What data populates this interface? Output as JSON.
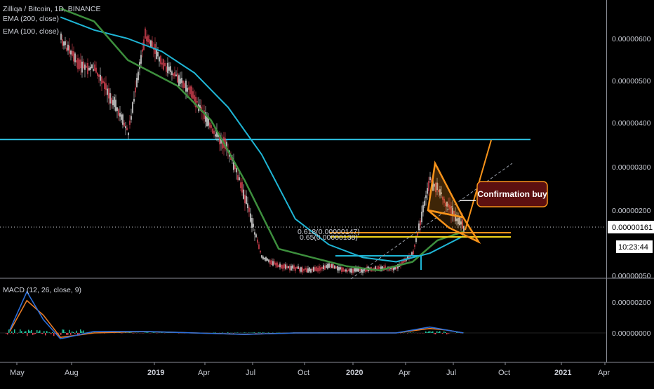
{
  "header": {
    "title": "Zilliqa / Bitcoin, 1D, BINANCE",
    "ema200": "EMA (200, close)",
    "ema100": "EMA (100, close)",
    "macd": "MACD (12, 26, close, 9)"
  },
  "price_badge": {
    "price": "0.00000161",
    "countdown": "10:23:44"
  },
  "annotation": {
    "confirmation_label": "Confirmation buy",
    "fib_0618": "0.618(0.00000147)",
    "fib_065": "0.65(0.00000138)"
  },
  "colors": {
    "ema200": "#1fb6d6",
    "ema100": "#3d8f3d",
    "candle_up": "#e9e9e9",
    "candle_down": "#e04555",
    "resistance": "#2bb7d6",
    "pattern": "#f7931a",
    "fib": "#f2d41b",
    "macd_line": "#2a6fdb",
    "signal_line": "#e87b26"
  },
  "chart_data": [
    {
      "type": "line",
      "title": "Zilliqa / Bitcoin, 1D, BINANCE",
      "xlabel": "",
      "ylabel": "",
      "ylim": [
        5e-07,
        6.7e-06
      ],
      "y_ticks": [
        "0.00000600",
        "0.00000500",
        "0.00000400",
        "0.00000300",
        "0.00000200",
        "0.00000050"
      ],
      "x_ticks": [
        "May",
        "Aug",
        "2019",
        "Apr",
        "Jul",
        "Oct",
        "2020",
        "Apr",
        "Jul",
        "Oct",
        "2021",
        "Apr"
      ],
      "grid": false,
      "series": [
        {
          "name": "Zilliqa / Bitcoin",
          "kind": "price",
          "x": [
            "2018-08-01",
            "2018-09-01",
            "2018-10-01",
            "2018-11-01",
            "2018-12-01",
            "2019-01-01",
            "2019-02-01",
            "2019-03-01",
            "2019-04-01",
            "2019-05-01",
            "2019-06-01",
            "2019-07-01",
            "2019-08-01",
            "2019-09-01",
            "2019-10-01",
            "2019-11-01",
            "2019-12-01",
            "2020-01-01",
            "2020-02-01",
            "2020-03-01",
            "2020-04-01",
            "2020-05-01",
            "2020-06-01",
            "2020-06-15",
            "2020-07-01",
            "2020-07-15",
            "2020-08-01"
          ],
          "values": [
            6e-06,
            5.4e-06,
            5.3e-06,
            4.6e-06,
            3.8e-06,
            6.1e-06,
            5.4e-06,
            5.1e-06,
            4.6e-06,
            3.9e-06,
            3.4e-06,
            2.3e-06,
            9e-07,
            7e-07,
            6.5e-07,
            6e-07,
            7e-07,
            6e-07,
            6e-07,
            6.5e-07,
            6.5e-07,
            1e-06,
            2.7e-06,
            2.5e-06,
            2.1e-06,
            1.9e-06,
            1.6e-06
          ]
        },
        {
          "name": "EMA (200, close)",
          "kind": "ema",
          "x": [
            "2018-08-01",
            "2018-10-01",
            "2018-12-01",
            "2019-02-01",
            "2019-04-01",
            "2019-06-01",
            "2019-08-01",
            "2019-10-01",
            "2019-12-01",
            "2020-02-01",
            "2020-04-01",
            "2020-06-01",
            "2020-08-01"
          ],
          "values": [
            6.5e-06,
            6.2e-06,
            6e-06,
            5.7e-06,
            5.2e-06,
            4.4e-06,
            3.3e-06,
            1.8e-06,
            1.2e-06,
            9e-07,
            8e-07,
            1e-06,
            1.4e-06
          ]
        },
        {
          "name": "EMA (100, close)",
          "kind": "ema",
          "x": [
            "2018-08-01",
            "2018-10-01",
            "2018-12-01",
            "2019-01-15",
            "2019-03-01",
            "2019-05-01",
            "2019-07-01",
            "2019-09-01",
            "2019-11-01",
            "2020-01-01",
            "2020-03-01",
            "2020-05-01",
            "2020-06-15",
            "2020-08-01"
          ],
          "values": [
            6.7e-06,
            6.4e-06,
            5.5e-06,
            5.2e-06,
            4.9e-06,
            4.1e-06,
            2.7e-06,
            1.1e-06,
            9e-07,
            7e-07,
            6e-07,
            8e-07,
            1.3e-06,
            1.5e-06
          ]
        }
      ]
    },
    {
      "type": "line",
      "title": "MACD (12, 26, close, 9)",
      "xlabel": "",
      "ylabel": "",
      "y_ticks": [
        "0.00000200",
        "0.00000000"
      ],
      "grid": false,
      "series": [
        {
          "name": "MACD",
          "x": [
            "2018-05-01",
            "2018-06-01",
            "2018-07-01",
            "2018-08-01",
            "2018-10-01",
            "2019-01-01",
            "2019-04-01",
            "2019-07-01",
            "2019-10-01",
            "2020-01-01",
            "2020-04-01",
            "2020-06-01",
            "2020-07-01",
            "2020-08-01"
          ],
          "values": [
            2e-07,
            2.8e-06,
            9e-07,
            -4e-07,
            1e-07,
            1e-07,
            0.0,
            -1e-07,
            0.0,
            0.0,
            0.0,
            4e-07,
            2e-07,
            0.0
          ]
        },
        {
          "name": "Signal",
          "x": [
            "2018-05-01",
            "2018-06-01",
            "2018-07-01",
            "2018-08-01",
            "2018-10-01",
            "2019-01-01",
            "2019-04-01",
            "2019-07-01",
            "2019-10-01",
            "2020-01-01",
            "2020-04-01",
            "2020-06-01",
            "2020-07-01",
            "2020-08-01"
          ],
          "values": [
            1e-07,
            2.2e-06,
            1.2e-06,
            -3e-07,
            0.0,
            1e-07,
            0.0,
            -1e-07,
            0.0,
            0.0,
            0.0,
            3e-07,
            2e-07,
            0.0
          ]
        }
      ]
    }
  ]
}
